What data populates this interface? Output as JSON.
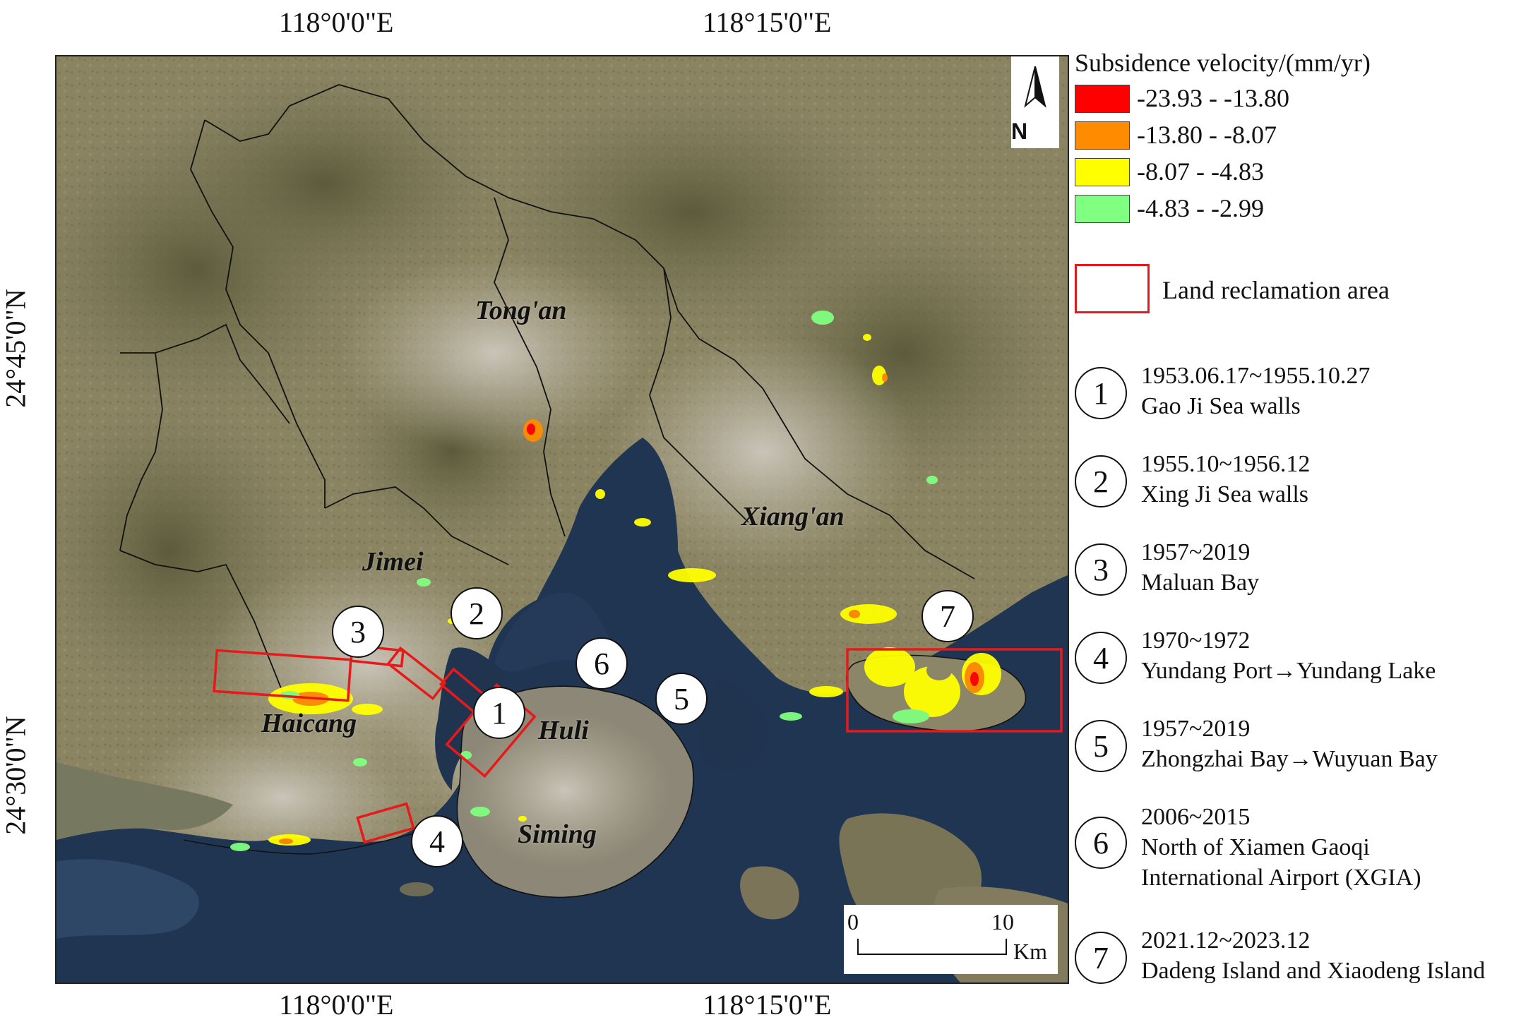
{
  "map": {
    "top_ticks": [
      "118°0'0\"E",
      "118°15'0\"E"
    ],
    "bottom_ticks": [
      "118°0'0\"E",
      "118°15'0\"E"
    ],
    "left_ticks": [
      "24°45'0\"N",
      "24°30'0\"N"
    ],
    "north_arrow_label": "N",
    "scale_bar": {
      "start": "0",
      "end": "10",
      "unit": "Km"
    },
    "places": [
      "Tong'an",
      "Xiang'an",
      "Jimei",
      "Haicang",
      "Huli",
      "Siming"
    ],
    "markers": [
      "1",
      "2",
      "3",
      "4",
      "5",
      "6",
      "7"
    ]
  },
  "legend": {
    "title": "Subsidence velocity/(mm/yr)",
    "classes": [
      {
        "label": "-23.93 - -13.80",
        "color": "#ff0000"
      },
      {
        "label": "-13.80 - -8.07",
        "color": "#ff8c00"
      },
      {
        "label": "-8.07 - -4.83",
        "color": "#ffff00"
      },
      {
        "label": "-4.83 - -2.99",
        "color": "#80ff80"
      }
    ],
    "reclamation_label": "Land reclamation area",
    "reclamation_color": "#e8191b",
    "items": [
      {
        "num": "1",
        "line1": "1953.06.17~1955.10.27",
        "line2": "Gao Ji Sea walls"
      },
      {
        "num": "2",
        "line1": "1955.10~1956.12",
        "line2": "Xing Ji Sea walls"
      },
      {
        "num": "3",
        "line1": "1957~2019",
        "line2": "Maluan Bay"
      },
      {
        "num": "4",
        "line1": "1970~1972",
        "line2": "Yundang Port→Yundang Lake"
      },
      {
        "num": "5",
        "line1": "1957~2019",
        "line2": "Zhongzhai Bay→Wuyuan Bay"
      },
      {
        "num": "6",
        "line1": "2006~2015",
        "line2": "North of Xiamen Gaoqi",
        "line3": "International Airport (XGIA)"
      },
      {
        "num": "7",
        "line1": "2021.12~2023.12",
        "line2": "Dadeng Island and Xiaodeng Island"
      }
    ]
  }
}
